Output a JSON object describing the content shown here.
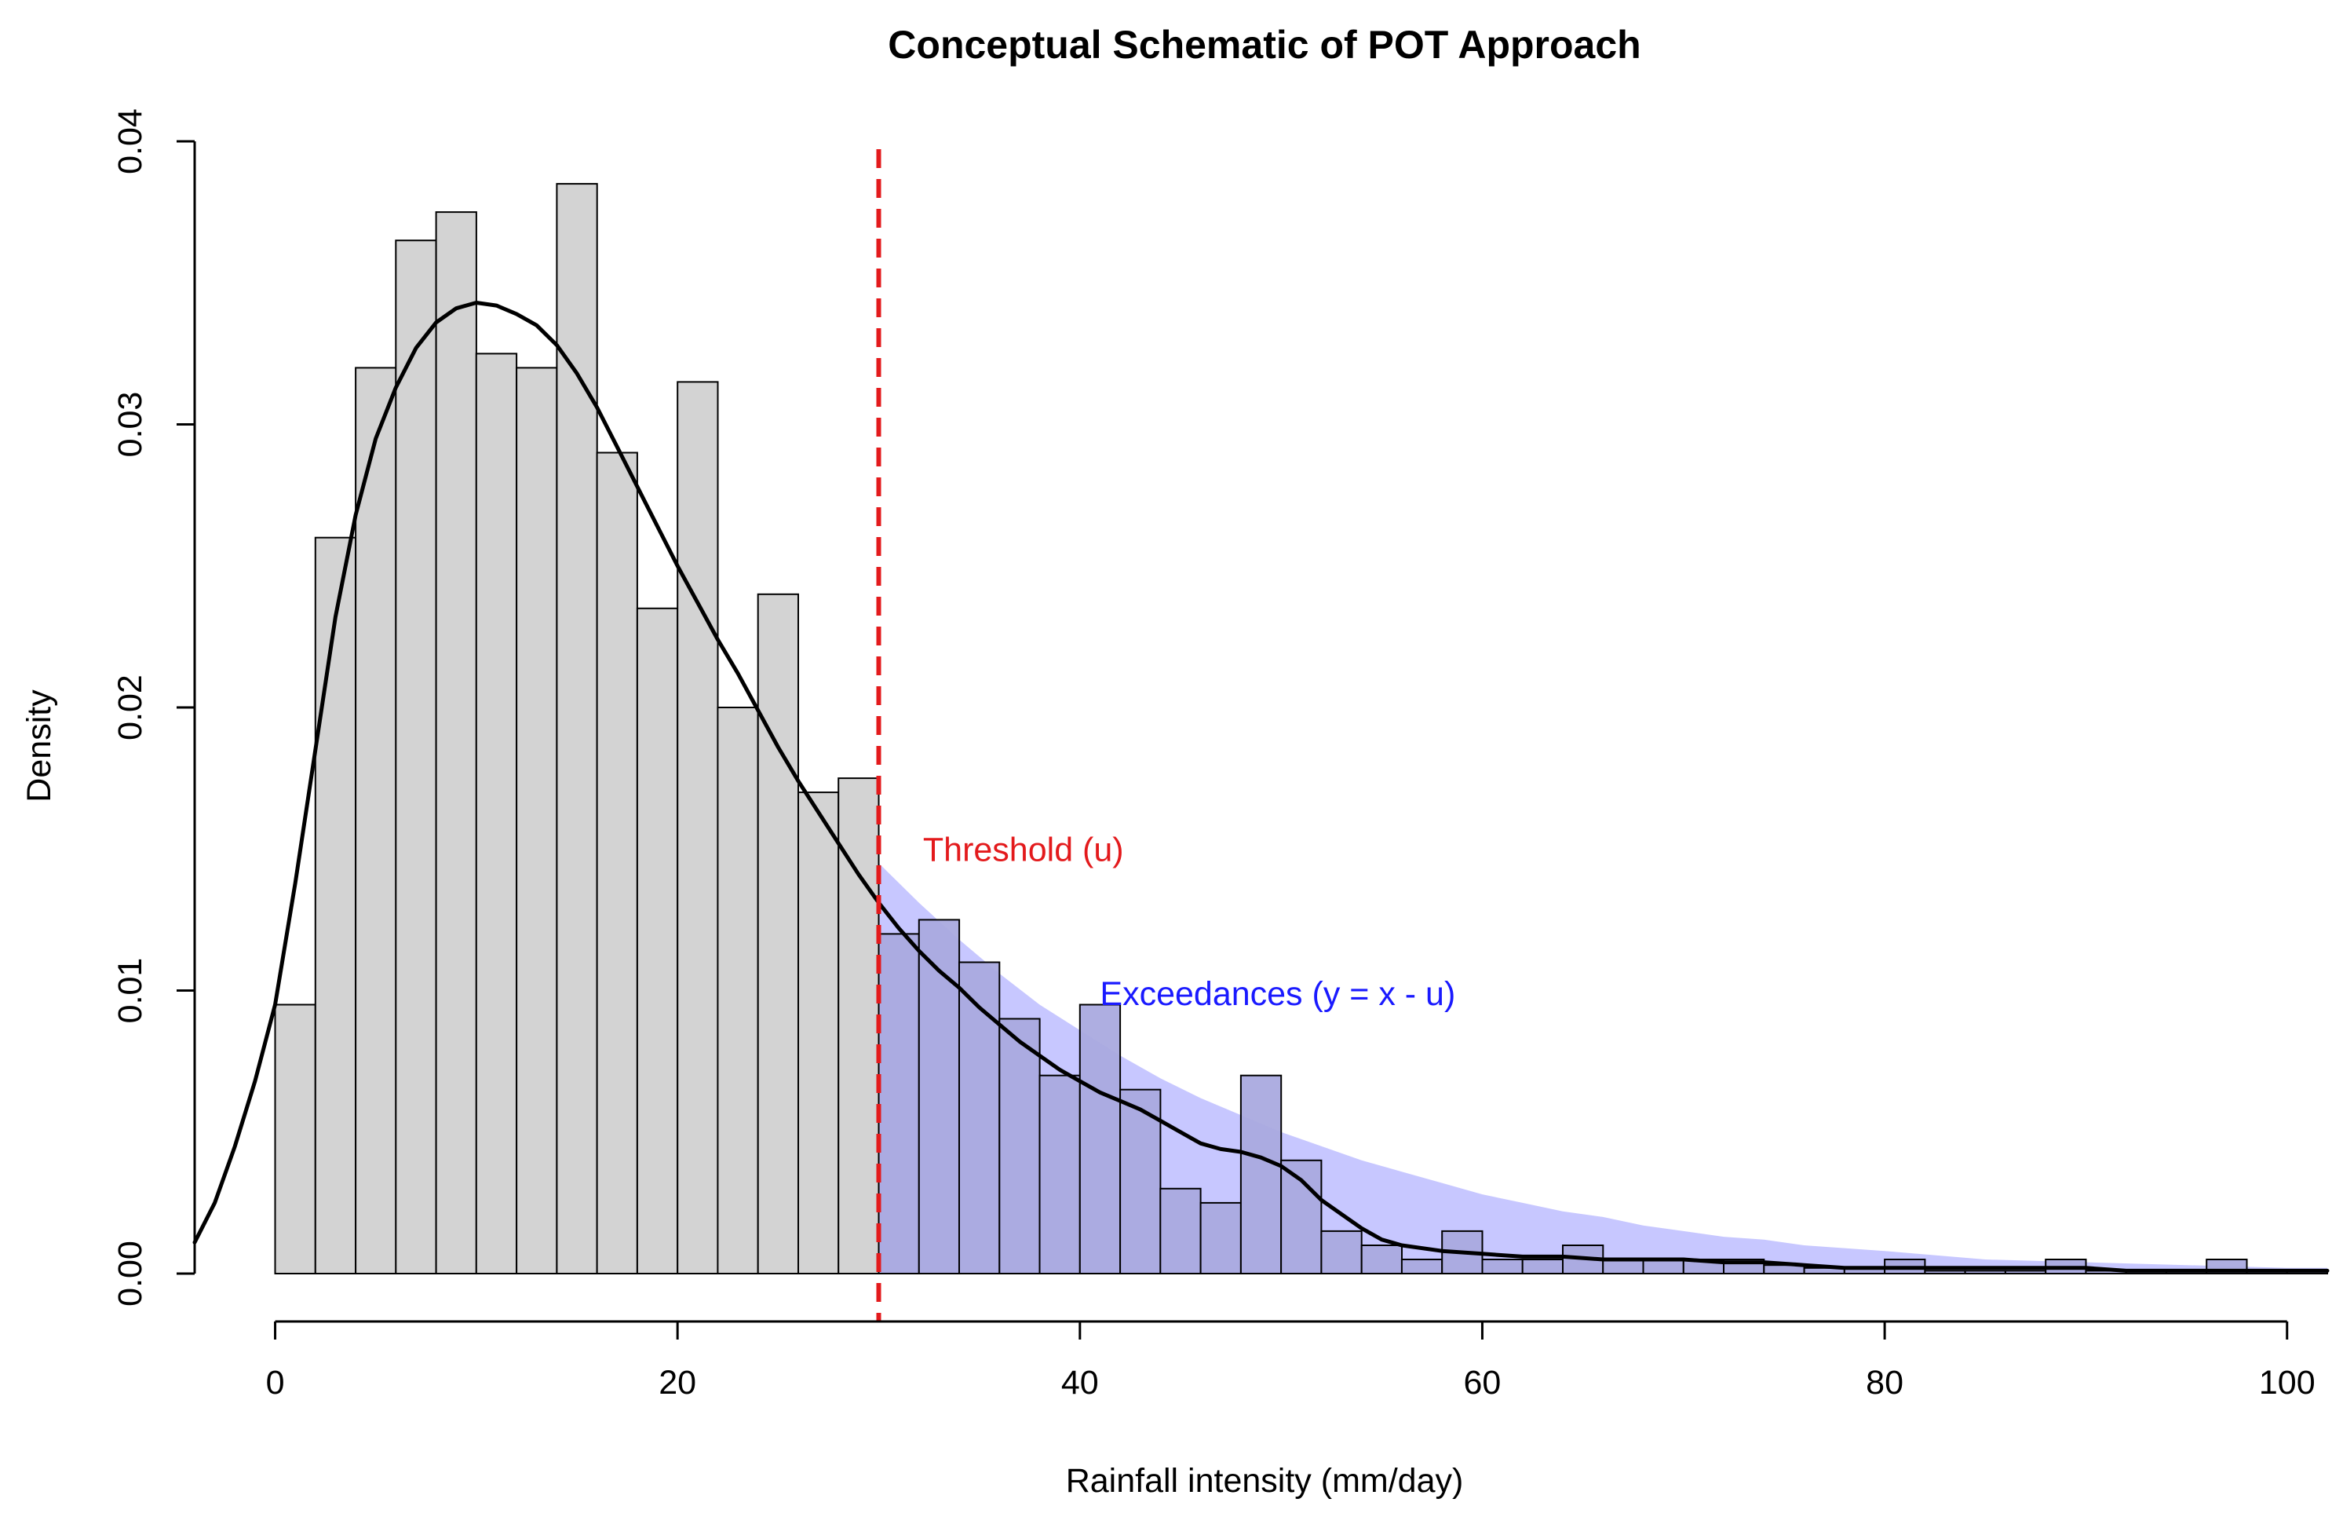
{
  "chart_data": {
    "type": "bar",
    "title": "Conceptual Schematic of POT Approach",
    "xlabel": "Rainfall intensity (mm/day)",
    "ylabel": "Density",
    "xlim": [
      -4,
      102
    ],
    "ylim": [
      0,
      0.04
    ],
    "x_ticks": [
      0,
      20,
      40,
      60,
      80,
      100
    ],
    "y_ticks": [
      0.0,
      0.01,
      0.02,
      0.03,
      0.04
    ],
    "x_tick_labels": [
      "0",
      "20",
      "40",
      "60",
      "80",
      "100"
    ],
    "y_tick_labels": [
      "0.00",
      "0.01",
      "0.02",
      "0.03",
      "0.04"
    ],
    "histogram": {
      "bin_width": 2,
      "bin_starts": [
        0,
        2,
        4,
        6,
        8,
        10,
        12,
        14,
        16,
        18,
        20,
        22,
        24,
        26,
        28,
        30,
        32,
        34,
        36,
        38,
        40,
        42,
        44,
        46,
        48,
        50,
        52,
        54,
        56,
        58,
        60,
        62,
        64,
        66,
        68,
        70,
        72,
        74,
        76,
        78,
        80,
        82,
        84,
        86,
        88,
        90,
        92,
        94,
        96,
        98,
        100
      ],
      "density": [
        0.0095,
        0.026,
        0.032,
        0.0365,
        0.0375,
        0.0325,
        0.032,
        0.0385,
        0.029,
        0.0235,
        0.0315,
        0.02,
        0.024,
        0.017,
        0.0175,
        0.012,
        0.0125,
        0.011,
        0.009,
        0.007,
        0.0095,
        0.0065,
        0.003,
        0.0025,
        0.007,
        0.004,
        0.0015,
        0.001,
        0.0005,
        0.0015,
        0.0005,
        0.0005,
        0.001,
        0.0005,
        0.0005,
        0.0005,
        0.0005,
        0.0003,
        0.0002,
        0.0002,
        0.0005,
        0.0001,
        0.0001,
        0.0001,
        0.0005,
        0.0001,
        0.0001,
        0.0001,
        0.0005,
        0.0001,
        0.0001
      ],
      "fill": "#d3d3d3",
      "exceedance_fill": "#aaaadf",
      "stroke": "#000000"
    },
    "kde_curve": {
      "x": [
        -4,
        -3,
        -2,
        -1,
        0,
        1,
        2,
        3,
        4,
        5,
        6,
        7,
        8,
        9,
        10,
        11,
        12,
        13,
        14,
        15,
        16,
        17,
        18,
        19,
        20,
        21,
        22,
        23,
        24,
        25,
        26,
        27,
        28,
        29,
        30,
        31,
        32,
        33,
        34,
        35,
        36,
        37,
        38,
        39,
        40,
        41,
        42,
        43,
        44,
        45,
        46,
        47,
        48,
        49,
        50,
        51,
        52,
        53,
        54,
        55,
        56,
        58,
        60,
        62,
        64,
        66,
        68,
        70,
        72,
        74,
        76,
        78,
        80,
        82,
        84,
        86,
        88,
        90,
        92,
        94,
        96,
        98,
        100,
        102
      ],
      "y": [
        0.0011,
        0.0025,
        0.0045,
        0.0068,
        0.0095,
        0.0138,
        0.0185,
        0.0232,
        0.0268,
        0.0295,
        0.0313,
        0.0327,
        0.0336,
        0.0341,
        0.0343,
        0.0342,
        0.0339,
        0.0335,
        0.0328,
        0.0318,
        0.0306,
        0.0292,
        0.0278,
        0.0264,
        0.025,
        0.0237,
        0.0224,
        0.0212,
        0.0199,
        0.0186,
        0.0174,
        0.0163,
        0.0152,
        0.0141,
        0.0131,
        0.0122,
        0.0114,
        0.0107,
        0.0101,
        0.0094,
        0.0088,
        0.0082,
        0.0077,
        0.0072,
        0.0068,
        0.0064,
        0.0061,
        0.0058,
        0.0054,
        0.005,
        0.0046,
        0.0044,
        0.0043,
        0.0041,
        0.0038,
        0.0033,
        0.0026,
        0.0021,
        0.0016,
        0.0012,
        0.001,
        0.0008,
        0.0007,
        0.0006,
        0.0006,
        0.0005,
        0.0005,
        0.0005,
        0.0004,
        0.0004,
        0.0003,
        0.0002,
        0.0002,
        0.0002,
        0.0002,
        0.0002,
        0.0002,
        0.0002,
        0.0001,
        0.0001,
        0.0001,
        0.0001,
        0.0001,
        0.0001
      ],
      "stroke": "#000000"
    },
    "gpd_tail": {
      "x": [
        30,
        32,
        34,
        36,
        38,
        40,
        42,
        44,
        46,
        48,
        50,
        52,
        54,
        56,
        58,
        60,
        62,
        64,
        66,
        68,
        70,
        72,
        74,
        76,
        78,
        80,
        85,
        90,
        95,
        100,
        102
      ],
      "y": [
        0.0145,
        0.0131,
        0.0118,
        0.0106,
        0.0095,
        0.0086,
        0.0077,
        0.0069,
        0.0062,
        0.0056,
        0.005,
        0.0045,
        0.004,
        0.0036,
        0.0032,
        0.0028,
        0.0025,
        0.0022,
        0.002,
        0.0017,
        0.0015,
        0.0013,
        0.0012,
        0.001,
        0.0009,
        0.0008,
        0.0005,
        0.0004,
        0.0003,
        0.0002,
        0.0002
      ],
      "fill": "#c7c7ff"
    },
    "threshold": {
      "x": 30,
      "color": "#e31a1c",
      "style": "dashed"
    },
    "annotations": [
      {
        "text": "Threshold (u)",
        "x": 32.2,
        "y": 0.015,
        "color": "#e31a1c"
      },
      {
        "text": "Exceedances (y = x - u)",
        "x": 41,
        "y": 0.0099,
        "color": "#1a1aff"
      }
    ],
    "grid": false,
    "legend": "none"
  }
}
